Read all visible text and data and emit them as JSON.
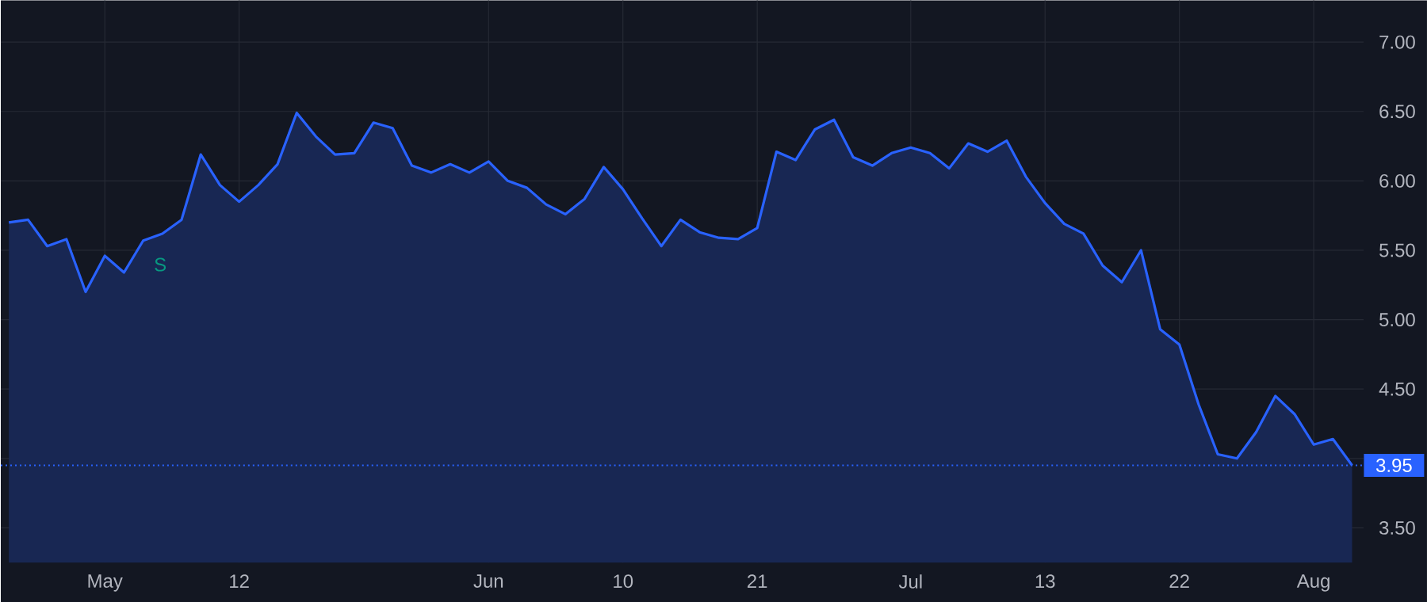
{
  "chart_data": {
    "type": "area",
    "categories": [
      null,
      null,
      null,
      null,
      null,
      "May",
      null,
      null,
      null,
      null,
      null,
      null,
      "12",
      null,
      null,
      null,
      null,
      null,
      null,
      null,
      null,
      null,
      null,
      null,
      null,
      "Jun",
      null,
      null,
      null,
      null,
      null,
      null,
      "10",
      null,
      null,
      null,
      null,
      null,
      null,
      "21",
      null,
      null,
      null,
      null,
      null,
      null,
      null,
      "Jul",
      null,
      null,
      null,
      null,
      null,
      null,
      "13",
      null,
      null,
      null,
      null,
      null,
      null,
      "22",
      null,
      null,
      null,
      null,
      null,
      null,
      "Aug",
      null,
      null
    ],
    "series": [
      {
        "color": "#2962ff",
        "values": [
          5.7,
          5.72,
          5.53,
          5.58,
          5.2,
          5.46,
          5.34,
          5.57,
          5.62,
          5.72,
          6.19,
          5.97,
          5.85,
          5.97,
          6.12,
          6.49,
          6.32,
          6.19,
          6.2,
          6.42,
          6.38,
          6.11,
          6.06,
          6.12,
          6.06,
          6.14,
          6.0,
          5.95,
          5.83,
          5.76,
          5.87,
          6.1,
          5.94,
          5.73,
          5.53,
          5.72,
          5.63,
          5.59,
          5.58,
          5.66,
          6.21,
          6.15,
          6.37,
          6.44,
          6.17,
          6.11,
          6.2,
          6.24,
          6.2,
          6.09,
          6.27,
          6.21,
          6.29,
          6.03,
          5.84,
          5.69,
          5.62,
          5.39,
          5.27,
          5.5,
          4.93,
          4.82,
          4.39,
          4.03,
          4.0,
          4.19,
          4.45,
          4.32,
          4.1,
          4.14,
          3.95
        ]
      }
    ],
    "ylim": [
      3.25,
      7.3
    ],
    "yticks": [
      {
        "value": 3.5,
        "label": "3.50"
      },
      {
        "value": 4,
        "label": null
      },
      {
        "value": 4.5,
        "label": "4.50"
      },
      {
        "value": 5,
        "label": "5.00"
      },
      {
        "value": 5.5,
        "label": "5.50"
      },
      {
        "value": 6,
        "label": "6.00"
      },
      {
        "value": 6.5,
        "label": "6.50"
      },
      {
        "value": 7,
        "label": "7.00"
      }
    ],
    "ref_lines": [
      {
        "axis": "y",
        "value": 3.95,
        "label": "3.95",
        "color": "#2962ff",
        "line_style": "dotted"
      }
    ],
    "annotations": [
      "S"
    ],
    "grid": true,
    "marker": "none",
    "line_style": "solid"
  }
}
